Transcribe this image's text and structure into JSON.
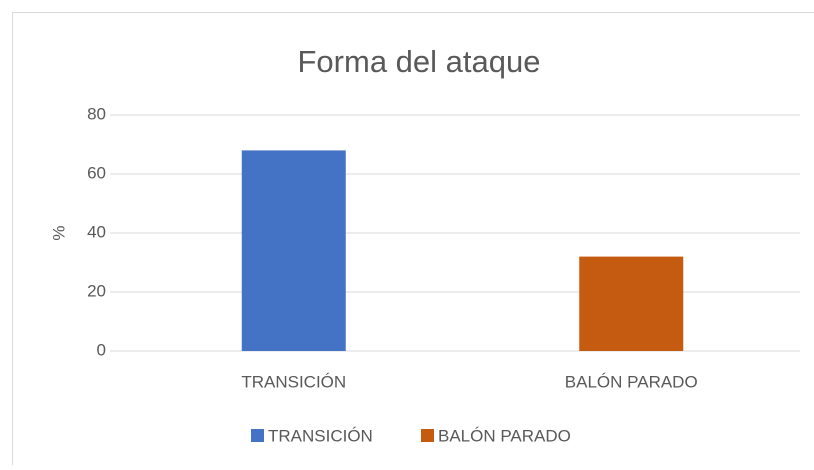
{
  "chart_data": {
    "type": "bar",
    "title": "Forma del ataque",
    "ylabel": "%",
    "categories": [
      "TRANSICIÓN",
      "BALÓN PARADO"
    ],
    "values": [
      68,
      32
    ],
    "colors": [
      "#4472c4",
      "#c55a11"
    ],
    "ylim": [
      0,
      80
    ],
    "yticks": [
      0,
      20,
      40,
      60,
      80
    ],
    "grid": true,
    "legend": "bottom"
  }
}
